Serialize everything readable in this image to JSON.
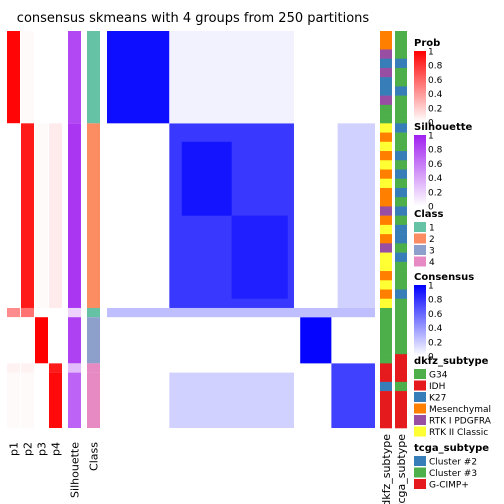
{
  "chart_data": {
    "type": "heatmap",
    "title": "consensus skmeans with 4 groups from 250 partitions",
    "column_labels": [
      "p1",
      "p2",
      "p3",
      "p4",
      "Silhouette",
      "Class"
    ],
    "annotation_labels": [
      "dkfz_subtype",
      "tcga_subtype"
    ],
    "groups": [
      {
        "class": 1,
        "size": 10,
        "prob": [
          0.98,
          0.02,
          0.0,
          0.0
        ],
        "silhouette": 0.82
      },
      {
        "class": 2,
        "size": 20,
        "prob": [
          0.0,
          0.9,
          0.02,
          0.08
        ],
        "silhouette": 0.9
      },
      {
        "class": 1,
        "size": 1,
        "prob": [
          0.45,
          0.55,
          0.0,
          0.0
        ],
        "silhouette": 0.2
      },
      {
        "class": 3,
        "size": 5,
        "prob": [
          0.0,
          0.0,
          1.0,
          0.0
        ],
        "silhouette": 0.85
      },
      {
        "class": 4,
        "size": 1,
        "prob": [
          0.05,
          0.05,
          0.0,
          0.9
        ],
        "silhouette": 0.3
      },
      {
        "class": 4,
        "size": 6,
        "prob": [
          0.02,
          0.02,
          0.0,
          0.96
        ],
        "silhouette": 0.7
      }
    ],
    "consensus_blocks": [
      {
        "rows": [
          0,
          10
        ],
        "cols": [
          0,
          10
        ],
        "value": 0.95
      },
      {
        "rows": [
          10,
          30
        ],
        "cols": [
          10,
          30
        ],
        "value": 0.78
      },
      {
        "rows": [
          12,
          20
        ],
        "cols": [
          12,
          20
        ],
        "value": 0.92
      },
      {
        "rows": [
          20,
          29
        ],
        "cols": [
          20,
          29
        ],
        "value": 0.88
      },
      {
        "rows": [
          31,
          36
        ],
        "cols": [
          31,
          36
        ],
        "value": 0.98
      },
      {
        "rows": [
          36,
          43
        ],
        "cols": [
          36,
          43
        ],
        "value": 0.75
      },
      {
        "rows": [
          10,
          30
        ],
        "cols": [
          37,
          43
        ],
        "value": 0.18
      },
      {
        "rows": [
          37,
          43
        ],
        "cols": [
          10,
          30
        ],
        "value": 0.18
      },
      {
        "rows": [
          0,
          10
        ],
        "cols": [
          10,
          30
        ],
        "value": 0.05
      },
      {
        "rows": [
          30,
          31
        ],
        "cols": [
          0,
          43
        ],
        "value": 0.25
      }
    ],
    "dkfz_subtype_rows": [
      "Mesenchymal",
      "Mesenchymal",
      "RTK I PDGFRA",
      "K27",
      "RTK I PDGFRA",
      "K27",
      "K27",
      "RTK I PDGFRA",
      "G34",
      "G34",
      "RTK II Classic",
      "Mesenchymal",
      "RTK II Classic",
      "Mesenchymal",
      "RTK II Classic",
      "Mesenchymal",
      "RTK II Classic",
      "Mesenchymal",
      "Mesenchymal",
      "RTK I PDGFRA",
      "Mesenchymal",
      "RTK II Classic",
      "Mesenchymal",
      "RTK I PDGFRA",
      "RTK II Classic",
      "RTK II Classic",
      "Mesenchymal",
      "RTK II Classic",
      "Mesenchymal",
      "RTK II Classic",
      "G34",
      "G34",
      "G34",
      "G34",
      "G34",
      "G34",
      "IDH",
      "IDH",
      "K27",
      "IDH",
      "IDH",
      "IDH",
      "IDH"
    ],
    "tcga_subtype_rows": [
      "Cluster #3",
      "Cluster #3",
      "Cluster #3",
      "Cluster #2",
      "Cluster #3",
      "Cluster #3",
      "Cluster #2",
      "Cluster #3",
      "Cluster #3",
      "Cluster #3",
      "Cluster #2",
      "Cluster #3",
      "Cluster #3",
      "Cluster #2",
      "Cluster #3",
      "Cluster #2",
      "Cluster #3",
      "Cluster #2",
      "Cluster #3",
      "Cluster #2",
      "Cluster #3",
      "Cluster #2",
      "Cluster #2",
      "Cluster #3",
      "Cluster #2",
      "Cluster #3",
      "Cluster #3",
      "Cluster #3",
      "Cluster #2",
      "Cluster #3",
      "Cluster #3",
      "Cluster #3",
      "Cluster #3",
      "Cluster #3",
      "Cluster #3",
      "G-CIMP+",
      "G-CIMP+",
      "G-CIMP+",
      "Cluster #3",
      "G-CIMP+",
      "G-CIMP+",
      "G-CIMP+",
      "G-CIMP+"
    ]
  },
  "legends": {
    "prob": {
      "title": "Prob",
      "ticks": [
        "1",
        "0.8",
        "0.6",
        "0.4",
        "0.2",
        "0"
      ]
    },
    "silhouette": {
      "title": "Silhouette",
      "ticks": [
        "1",
        "0.8",
        "0.6",
        "0.4",
        "0.2",
        "0"
      ]
    },
    "class": {
      "title": "Class",
      "items": [
        {
          "label": "1",
          "color": "#66C2A5"
        },
        {
          "label": "2",
          "color": "#FC8D62"
        },
        {
          "label": "3",
          "color": "#8DA0CB"
        },
        {
          "label": "4",
          "color": "#E78AC3"
        }
      ]
    },
    "consensus": {
      "title": "Consensus",
      "ticks": [
        "1",
        "0.8",
        "0.6",
        "0.4",
        "0.2",
        "0"
      ]
    },
    "dkfz": {
      "title": "dkfz_subtype",
      "items": [
        {
          "label": "G34",
          "color": "#4DAF4A"
        },
        {
          "label": "IDH",
          "color": "#E41A1C"
        },
        {
          "label": "K27",
          "color": "#377EB8"
        },
        {
          "label": "Mesenchymal",
          "color": "#FF7F00"
        },
        {
          "label": "RTK I PDGFRA",
          "color": "#984EA3"
        },
        {
          "label": "RTK II Classic",
          "color": "#FFFF33"
        }
      ]
    },
    "tcga": {
      "title": "tcga_subtype",
      "items": [
        {
          "label": "Cluster #2",
          "color": "#377EB8"
        },
        {
          "label": "Cluster #3",
          "color": "#4DAF4A"
        },
        {
          "label": "G-CIMP+",
          "color": "#E41A1C"
        }
      ]
    }
  }
}
